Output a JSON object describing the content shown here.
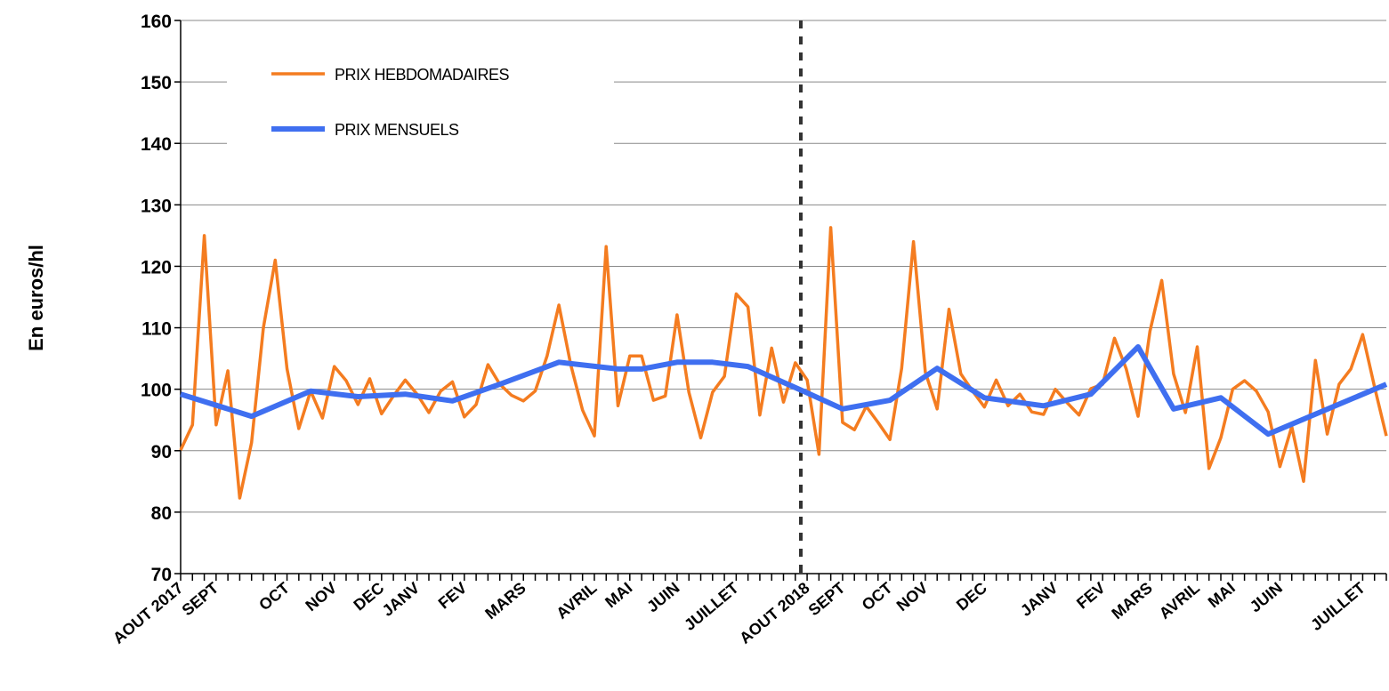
{
  "chart_data": {
    "type": "line",
    "y_label": "En euros/hl",
    "categories": [
      "AOUT 2017",
      null,
      null,
      "SEPT",
      null,
      null,
      null,
      null,
      null,
      "OCT",
      null,
      null,
      null,
      "NOV",
      null,
      null,
      null,
      "DEC",
      null,
      null,
      "JANV",
      null,
      null,
      null,
      "FEV",
      null,
      null,
      null,
      null,
      "MARS",
      null,
      null,
      null,
      null,
      null,
      "AVRIL",
      null,
      null,
      "MAI",
      null,
      null,
      null,
      "JUIN",
      null,
      null,
      null,
      null,
      "JUILLET",
      null,
      null,
      null,
      null,
      null,
      "AOUT 2018",
      null,
      null,
      "SEPT",
      null,
      null,
      null,
      "OCT",
      null,
      null,
      "NOV",
      null,
      null,
      null,
      null,
      "DEC",
      null,
      null,
      null,
      null,
      null,
      "JANV",
      null,
      null,
      null,
      "FEV",
      null,
      null,
      null,
      "MARS",
      null,
      null,
      null,
      "AVRIL",
      null,
      null,
      "MAI",
      null,
      null,
      null,
      "JUIN",
      null,
      null,
      null,
      null,
      null,
      null,
      "JUILLET",
      null,
      null
    ],
    "series": [
      {
        "name": "PRIX HEBDOMADAIRES",
        "color": "#f47c20",
        "values": [
          90.1,
          94.2,
          125,
          94.2,
          103,
          82.3,
          91.3,
          110,
          121,
          103.3,
          93.6,
          99.7,
          95.3,
          103.7,
          101.4,
          97.5,
          101.7,
          96,
          98.9,
          101.5,
          99.2,
          96.2,
          99.7,
          101.2,
          95.5,
          97.5,
          104,
          100.8,
          99,
          98.1,
          99.7,
          105.4,
          113.7,
          104,
          96.6,
          92.4,
          123.2,
          97.3,
          105.4,
          105.4,
          98.2,
          98.9,
          112.1,
          99.5,
          92.1,
          99.5,
          102.1,
          115.5,
          113.4,
          95.8,
          106.7,
          97.9,
          104.3,
          101.5,
          89.4,
          126.3,
          94.6,
          93.4,
          97.2,
          94.6,
          91.8,
          103.4,
          124,
          102.8,
          96.8,
          113,
          102.5,
          99.7,
          97.1,
          101.5,
          97.3,
          99.2,
          96.3,
          95.9,
          100,
          97.8,
          95.8,
          100.1,
          100.8,
          108.3,
          103.3,
          95.6,
          109.4,
          117.7,
          102.5,
          96.2,
          106.9,
          87.1,
          92.1,
          100,
          101.4,
          99.7,
          96.3,
          87.4,
          93.9,
          85,
          104.7,
          92.7,
          100.8,
          103.3,
          108.9,
          100.4,
          92.4
        ]
      },
      {
        "name": "PRIX MENSUELS",
        "color": "#3f6ff0",
        "values": [
          99.2,
          null,
          null,
          null,
          null,
          null,
          95.6,
          null,
          null,
          null,
          null,
          99.7,
          null,
          null,
          null,
          98.8,
          null,
          null,
          null,
          99.2,
          null,
          null,
          null,
          98.1,
          null,
          null,
          null,
          100.8,
          null,
          null,
          null,
          null,
          104.4,
          null,
          null,
          null,
          null,
          103.3,
          null,
          103.3,
          null,
          null,
          104.4,
          null,
          null,
          104.4,
          null,
          null,
          103.7,
          null,
          null,
          null,
          null,
          99.4,
          null,
          null,
          96.8,
          null,
          null,
          null,
          98.2,
          null,
          null,
          null,
          103.4,
          null,
          null,
          null,
          98.6,
          null,
          null,
          null,
          null,
          97.3,
          null,
          null,
          null,
          99.2,
          null,
          null,
          null,
          106.9,
          null,
          null,
          96.8,
          null,
          null,
          null,
          98.6,
          null,
          null,
          null,
          92.7,
          null,
          null,
          null,
          null,
          null,
          null,
          null,
          null,
          null,
          100.8
        ]
      }
    ],
    "ylim": [
      70,
      160
    ],
    "yticks": [
      70,
      80,
      90,
      100,
      110,
      120,
      130,
      140,
      150,
      160
    ],
    "grid": true,
    "legend": "upper left"
  }
}
